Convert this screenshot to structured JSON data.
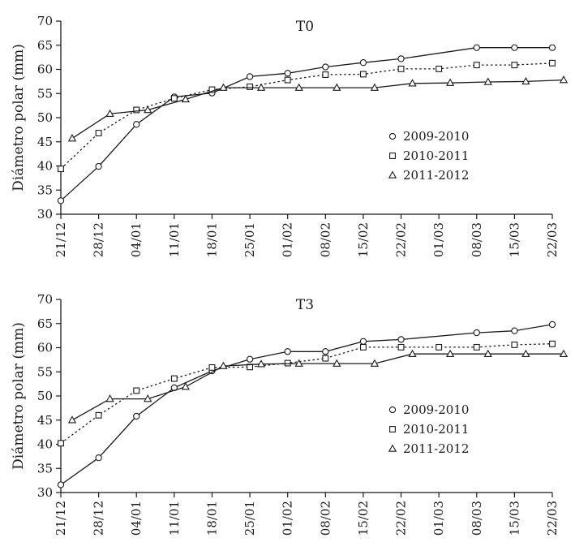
{
  "chart_data": [
    {
      "type": "line",
      "title": "T0",
      "ylabel": "Diámetro polar (mm)",
      "xlabel": "",
      "ylim": [
        30,
        70
      ],
      "yticks": [
        30,
        35,
        40,
        45,
        50,
        55,
        60,
        65,
        70
      ],
      "categories": [
        "21/12",
        "28/12",
        "04/01",
        "11/01",
        "18/01",
        "25/01",
        "01/02",
        "08/02",
        "15/02",
        "22/02",
        "01/03",
        "08/03",
        "15/03",
        "22/03"
      ],
      "legend_position": "right-middle",
      "series": [
        {
          "name": "2009-2010",
          "marker": "circle",
          "line_style": "solid",
          "x": [
            0,
            1,
            2,
            3,
            4,
            5,
            6,
            7,
            8,
            9,
            11,
            12,
            13
          ],
          "values": [
            32.8,
            39.9,
            48.6,
            54.3,
            55.1,
            58.5,
            59.2,
            60.5,
            61.4,
            62.2,
            64.5,
            64.5,
            64.5
          ]
        },
        {
          "name": "2010-2011",
          "marker": "square",
          "line_style": "dotted",
          "x": [
            0,
            1,
            2,
            3,
            4,
            5,
            6,
            7,
            8,
            9,
            10,
            11,
            12,
            13
          ],
          "values": [
            39.4,
            46.8,
            51.6,
            54.0,
            55.8,
            56.4,
            57.8,
            58.9,
            59.0,
            60.1,
            60.1,
            60.9,
            60.9,
            61.3
          ]
        },
        {
          "name": "2011-2012",
          "marker": "triangle",
          "line_style": "solid",
          "x": [
            0.3,
            1.3,
            2.3,
            3.3,
            4.3,
            5.3,
            6.3,
            7.3,
            8.3,
            9.3,
            10.3,
            11.3,
            12.3,
            13.3
          ],
          "values": [
            45.7,
            50.8,
            51.6,
            53.8,
            56.2,
            56.2,
            56.2,
            56.2,
            56.2,
            57.1,
            57.2,
            57.4,
            57.5,
            57.8
          ]
        }
      ]
    },
    {
      "type": "line",
      "title": "T3",
      "ylabel": "Diámetro polar (mm)",
      "xlabel": "",
      "ylim": [
        30,
        70
      ],
      "yticks": [
        30,
        35,
        40,
        45,
        50,
        55,
        60,
        65,
        70
      ],
      "categories": [
        "21/12",
        "28/12",
        "04/01",
        "11/01",
        "18/01",
        "25/01",
        "01/02",
        "08/02",
        "15/02",
        "22/02",
        "01/03",
        "08/03",
        "15/03",
        "22/03"
      ],
      "legend_position": "right-middle",
      "series": [
        {
          "name": "2009-2010",
          "marker": "circle",
          "line_style": "solid",
          "x": [
            0,
            1,
            2,
            3,
            4,
            5,
            6,
            7,
            8,
            9,
            11,
            12,
            13
          ],
          "values": [
            31.6,
            37.2,
            45.8,
            51.7,
            55.2,
            57.6,
            59.2,
            59.2,
            61.3,
            61.7,
            63.1,
            63.5,
            64.8
          ]
        },
        {
          "name": "2010-2011",
          "marker": "square",
          "line_style": "dotted",
          "x": [
            0,
            1,
            2,
            3,
            4,
            5,
            6,
            7,
            8,
            9,
            10,
            11,
            12,
            13
          ],
          "values": [
            40.2,
            46.0,
            51.1,
            53.6,
            55.9,
            56.0,
            56.8,
            57.8,
            60.1,
            60.1,
            60.1,
            60.1,
            60.6,
            60.8
          ]
        },
        {
          "name": "2011-2012",
          "marker": "triangle",
          "line_style": "solid",
          "x": [
            0.3,
            1.3,
            2.3,
            3.3,
            4.3,
            5.3,
            6.3,
            7.3,
            8.3,
            9.3,
            10.3,
            11.3,
            12.3,
            13.3
          ],
          "values": [
            45.0,
            49.4,
            49.4,
            51.9,
            56.2,
            56.6,
            56.7,
            56.7,
            56.7,
            58.7,
            58.7,
            58.7,
            58.7,
            58.7
          ]
        }
      ]
    }
  ]
}
